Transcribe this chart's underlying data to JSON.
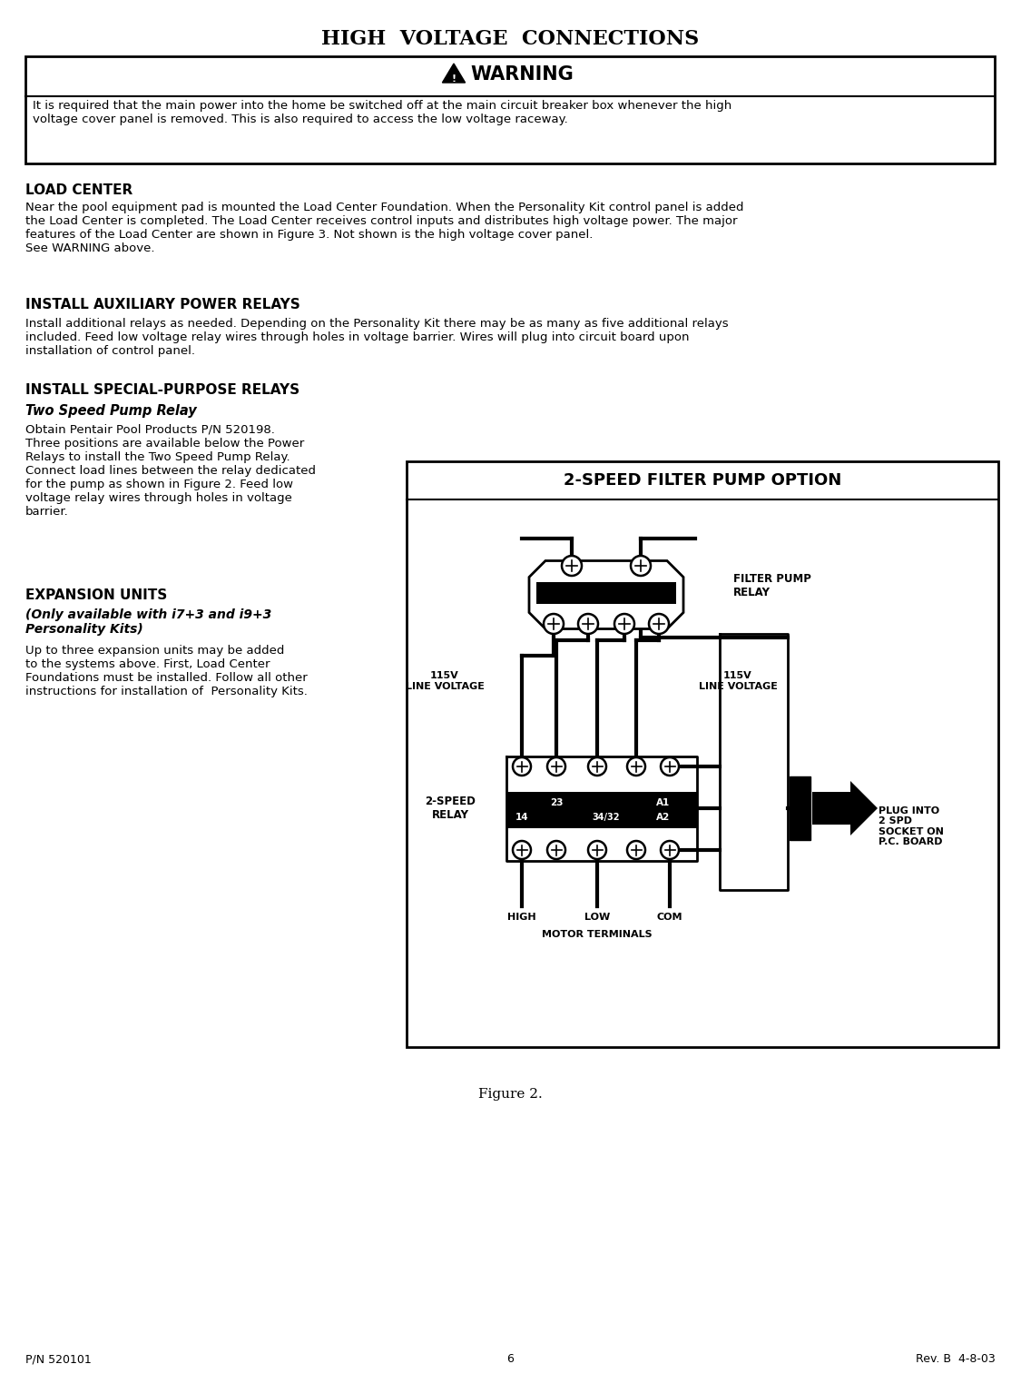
{
  "page_title": "HIGH  VOLTAGE  CONNECTIONS",
  "warning_text": "It is required that the main power into the home be switched off at the main circuit breaker box whenever the high\nvoltage cover panel is removed. This is also required to access the low voltage raceway.",
  "section1_title": "LOAD CENTER",
  "section1_body": "Near the pool equipment pad is mounted the Load Center Foundation. When the Personality Kit control panel is added\nthe Load Center is completed. The Load Center receives control inputs and distributes high voltage power. The major\nfeatures of the Load Center are shown in Figure 3. Not shown is the high voltage cover panel.\nSee WARNING above.",
  "section2_title": "INSTALL AUXILIARY POWER RELAYS",
  "section2_body": "Install additional relays as needed. Depending on the Personality Kit there may be as many as five additional relays\nincluded. Feed low voltage relay wires through holes in voltage barrier. Wires will plug into circuit board upon\ninstallation of control panel.",
  "section3_title": "INSTALL SPECIAL-PURPOSE RELAYS",
  "section3_sub": "Two Speed Pump Relay",
  "section3_body": "Obtain Pentair Pool Products P/N 520198.\nThree positions are available below the Power\nRelays to install the Two Speed Pump Relay.\nConnect load lines between the relay dedicated\nfor the pump as shown in Figure 2. Feed low\nvoltage relay wires through holes in voltage\nbarrier.",
  "section4_title": "EXPANSION UNITS",
  "section4_sub": "(Only available with i7+3 and i9+3\nPersonality Kits)",
  "section4_body": "Up to three expansion units may be added\nto the systems above. First, Load Center\nFoundations must be installed. Follow all other\ninstructions for installation of  Personality Kits.",
  "figure_title": "2-SPEED FILTER PUMP OPTION",
  "figure_caption": "Figure 2.",
  "footer_left": "P/N 520101",
  "footer_center": "6",
  "footer_right": "Rev. B  4-8-03",
  "bg_color": "#ffffff",
  "text_color": "#000000"
}
